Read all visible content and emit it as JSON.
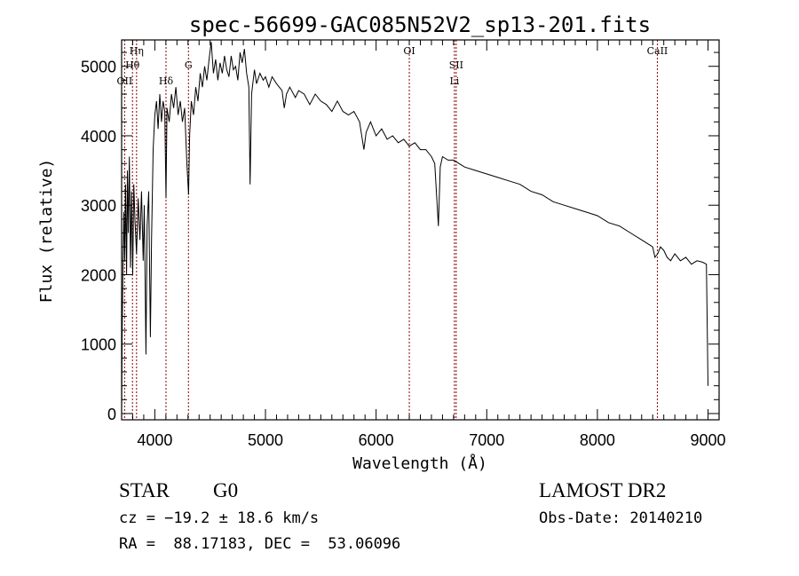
{
  "chart_data": {
    "type": "line",
    "title": "spec-56699-GAC085N52V2_sp13-201.fits",
    "xlabel": "Wavelength (Å)",
    "ylabel": "Flux (relative)",
    "xlim": [
      3700,
      9100
    ],
    "ylim": [
      -90,
      5380
    ],
    "xticks": [
      4000,
      5000,
      6000,
      7000,
      8000,
      9000
    ],
    "yticks": [
      0,
      1000,
      2000,
      3000,
      4000,
      5000
    ],
    "xtick_labels": [
      "4000",
      "5000",
      "6000",
      "7000",
      "8000",
      "9000"
    ],
    "ytick_labels": [
      "0",
      "1000",
      "2000",
      "3000",
      "4000",
      "5000"
    ],
    "grid": false,
    "line_color": "#000000",
    "marker_color": "#8b0000",
    "line_markers": [
      {
        "label": "OII",
        "wavelength": 3727
      },
      {
        "label": "Hη",
        "wavelength": 3835
      },
      {
        "label": "Hθ",
        "wavelength": 3798
      },
      {
        "label": "Hδ",
        "wavelength": 4101
      },
      {
        "label": "G",
        "wavelength": 4304
      },
      {
        "label": "OI",
        "wavelength": 6300
      },
      {
        "label": "SII",
        "wavelength": 6724
      },
      {
        "label": "Li",
        "wavelength": 6708
      },
      {
        "label": "CaII",
        "wavelength": 8542
      }
    ],
    "series": [
      {
        "name": "spectrum",
        "points": [
          [
            3700,
            0
          ],
          [
            3705,
            1200
          ],
          [
            3712,
            2100
          ],
          [
            3720,
            2900
          ],
          [
            3728,
            2200
          ],
          [
            3735,
            3300
          ],
          [
            3745,
            2000
          ],
          [
            3752,
            3500
          ],
          [
            3760,
            2600
          ],
          [
            3770,
            3700
          ],
          [
            3780,
            2100
          ],
          [
            3790,
            3200
          ],
          [
            3800,
            2000
          ],
          [
            3810,
            3300
          ],
          [
            3820,
            2800
          ],
          [
            3835,
            2300
          ],
          [
            3850,
            3100
          ],
          [
            3865,
            2500
          ],
          [
            3880,
            3200
          ],
          [
            3895,
            2200
          ],
          [
            3905,
            3000
          ],
          [
            3920,
            850
          ],
          [
            3930,
            2700
          ],
          [
            3945,
            3200
          ],
          [
            3960,
            1100
          ],
          [
            3970,
            2500
          ],
          [
            3985,
            3800
          ],
          [
            4000,
            4300
          ],
          [
            4015,
            4500
          ],
          [
            4030,
            4100
          ],
          [
            4045,
            4600
          ],
          [
            4060,
            4200
          ],
          [
            4075,
            4500
          ],
          [
            4090,
            4350
          ],
          [
            4101,
            3100
          ],
          [
            4110,
            4400
          ],
          [
            4130,
            4200
          ],
          [
            4150,
            4600
          ],
          [
            4170,
            4400
          ],
          [
            4190,
            4700
          ],
          [
            4210,
            4300
          ],
          [
            4230,
            4500
          ],
          [
            4250,
            4200
          ],
          [
            4270,
            4400
          ],
          [
            4290,
            3600
          ],
          [
            4305,
            3150
          ],
          [
            4315,
            4000
          ],
          [
            4330,
            4500
          ],
          [
            4350,
            4300
          ],
          [
            4370,
            4700
          ],
          [
            4390,
            4500
          ],
          [
            4410,
            4900
          ],
          [
            4430,
            4700
          ],
          [
            4450,
            5000
          ],
          [
            4470,
            4800
          ],
          [
            4490,
            5100
          ],
          [
            4510,
            5350
          ],
          [
            4530,
            4900
          ],
          [
            4550,
            5100
          ],
          [
            4570,
            4800
          ],
          [
            4590,
            5050
          ],
          [
            4610,
            4900
          ],
          [
            4630,
            5150
          ],
          [
            4650,
            4950
          ],
          [
            4670,
            4850
          ],
          [
            4690,
            5150
          ],
          [
            4710,
            4950
          ],
          [
            4730,
            5000
          ],
          [
            4750,
            4800
          ],
          [
            4770,
            5200
          ],
          [
            4790,
            5050
          ],
          [
            4810,
            5250
          ],
          [
            4830,
            4900
          ],
          [
            4850,
            4700
          ],
          [
            4861,
            3300
          ],
          [
            4875,
            4600
          ],
          [
            4900,
            4950
          ],
          [
            4920,
            4750
          ],
          [
            4950,
            4900
          ],
          [
            4980,
            4800
          ],
          [
            5000,
            4850
          ],
          [
            5030,
            4700
          ],
          [
            5060,
            4850
          ],
          [
            5100,
            4750
          ],
          [
            5150,
            4650
          ],
          [
            5170,
            4400
          ],
          [
            5190,
            4600
          ],
          [
            5220,
            4700
          ],
          [
            5270,
            4550
          ],
          [
            5300,
            4650
          ],
          [
            5350,
            4600
          ],
          [
            5400,
            4450
          ],
          [
            5450,
            4600
          ],
          [
            5500,
            4500
          ],
          [
            5550,
            4450
          ],
          [
            5600,
            4350
          ],
          [
            5650,
            4500
          ],
          [
            5700,
            4350
          ],
          [
            5750,
            4300
          ],
          [
            5800,
            4350
          ],
          [
            5850,
            4200
          ],
          [
            5890,
            3800
          ],
          [
            5910,
            4050
          ],
          [
            5950,
            4200
          ],
          [
            6000,
            4000
          ],
          [
            6050,
            4100
          ],
          [
            6100,
            3950
          ],
          [
            6150,
            4000
          ],
          [
            6200,
            3900
          ],
          [
            6250,
            3950
          ],
          [
            6300,
            3850
          ],
          [
            6350,
            3900
          ],
          [
            6400,
            3800
          ],
          [
            6450,
            3800
          ],
          [
            6500,
            3700
          ],
          [
            6530,
            3600
          ],
          [
            6563,
            2700
          ],
          [
            6580,
            3550
          ],
          [
            6600,
            3700
          ],
          [
            6650,
            3650
          ],
          [
            6700,
            3650
          ],
          [
            6750,
            3600
          ],
          [
            6800,
            3550
          ],
          [
            6900,
            3500
          ],
          [
            7000,
            3450
          ],
          [
            7100,
            3400
          ],
          [
            7200,
            3350
          ],
          [
            7300,
            3300
          ],
          [
            7400,
            3200
          ],
          [
            7500,
            3150
          ],
          [
            7600,
            3050
          ],
          [
            7700,
            3000
          ],
          [
            7800,
            2950
          ],
          [
            7900,
            2900
          ],
          [
            8000,
            2850
          ],
          [
            8100,
            2750
          ],
          [
            8200,
            2700
          ],
          [
            8300,
            2600
          ],
          [
            8400,
            2500
          ],
          [
            8480,
            2420
          ],
          [
            8500,
            2400
          ],
          [
            8520,
            2250
          ],
          [
            8545,
            2300
          ],
          [
            8570,
            2400
          ],
          [
            8600,
            2350
          ],
          [
            8630,
            2250
          ],
          [
            8662,
            2200
          ],
          [
            8700,
            2300
          ],
          [
            8750,
            2200
          ],
          [
            8800,
            2250
          ],
          [
            8850,
            2150
          ],
          [
            8900,
            2200
          ],
          [
            8950,
            2180
          ],
          [
            8985,
            2150
          ],
          [
            8995,
            1000
          ],
          [
            9000,
            400
          ]
        ]
      }
    ]
  },
  "info": {
    "class": "STAR",
    "subclass": "G0",
    "survey": "LAMOST DR2",
    "redshift": "cz = −19.2 ± 18.6 km/s",
    "obs_date": "Obs-Date: 20140210",
    "coords": "RA =  88.17183, DEC =  53.06096"
  }
}
